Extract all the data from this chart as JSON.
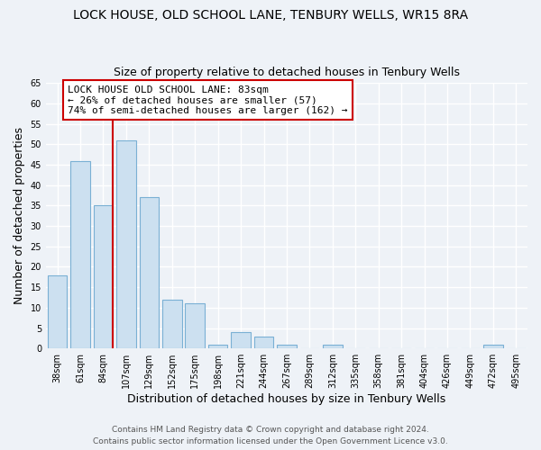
{
  "title": "LOCK HOUSE, OLD SCHOOL LANE, TENBURY WELLS, WR15 8RA",
  "subtitle": "Size of property relative to detached houses in Tenbury Wells",
  "xlabel": "Distribution of detached houses by size in Tenbury Wells",
  "ylabel": "Number of detached properties",
  "categories": [
    "38sqm",
    "61sqm",
    "84sqm",
    "107sqm",
    "129sqm",
    "152sqm",
    "175sqm",
    "198sqm",
    "221sqm",
    "244sqm",
    "267sqm",
    "289sqm",
    "312sqm",
    "335sqm",
    "358sqm",
    "381sqm",
    "404sqm",
    "426sqm",
    "449sqm",
    "472sqm",
    "495sqm"
  ],
  "values": [
    18,
    46,
    35,
    51,
    37,
    12,
    11,
    1,
    4,
    3,
    1,
    0,
    1,
    0,
    0,
    0,
    0,
    0,
    0,
    1,
    0
  ],
  "bar_color": "#cce0f0",
  "bar_edge_color": "#7ab0d4",
  "vline_x_index": 2,
  "vline_color": "#cc0000",
  "ylim": [
    0,
    65
  ],
  "yticks": [
    0,
    5,
    10,
    15,
    20,
    25,
    30,
    35,
    40,
    45,
    50,
    55,
    60,
    65
  ],
  "annotation_box_text_line1": "LOCK HOUSE OLD SCHOOL LANE: 83sqm",
  "annotation_box_text_line2": "← 26% of detached houses are smaller (57)",
  "annotation_box_text_line3": "74% of semi-detached houses are larger (162) →",
  "annotation_box_color": "#ffffff",
  "annotation_box_edge_color": "#cc0000",
  "footnote_line1": "Contains HM Land Registry data © Crown copyright and database right 2024.",
  "footnote_line2": "Contains public sector information licensed under the Open Government Licence v3.0.",
  "bg_color": "#eef2f7",
  "grid_color": "#ffffff",
  "title_fontsize": 10,
  "subtitle_fontsize": 9,
  "tick_fontsize": 7,
  "label_fontsize": 9,
  "footnote_fontsize": 6.5
}
